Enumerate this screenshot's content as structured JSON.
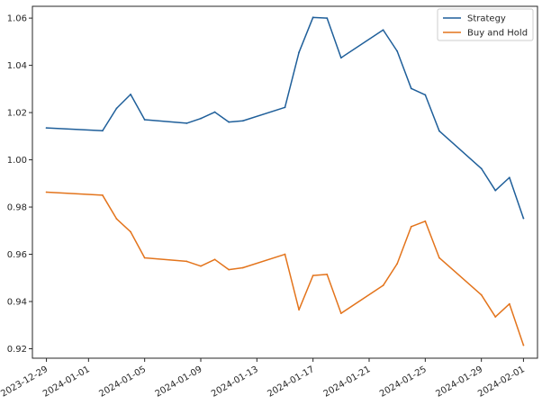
{
  "chart_data": {
    "type": "line",
    "title": "",
    "xlabel": "",
    "ylabel": "",
    "x_tick_labels": [
      "2023-12-29",
      "2024-01-01",
      "2024-01-05",
      "2024-01-09",
      "2024-01-13",
      "2024-01-17",
      "2024-01-21",
      "2024-01-25",
      "2024-01-29",
      "2024-02-01"
    ],
    "y_tick_labels": [
      "0.92",
      "0.94",
      "0.96",
      "0.98",
      "1.00",
      "1.02",
      "1.04",
      "1.06"
    ],
    "ylim": [
      0.916,
      1.065
    ],
    "xlim": [
      "2023-12-28",
      "2024-02-02"
    ],
    "grid": false,
    "legend_position": "top-right",
    "series": [
      {
        "name": "Strategy",
        "color": "#1f5f9a",
        "points": [
          [
            "2023-12-29",
            1.0135
          ],
          [
            "2024-01-02",
            1.0123
          ],
          [
            "2024-01-03",
            1.0218
          ],
          [
            "2024-01-04",
            1.0277
          ],
          [
            "2024-01-05",
            1.017
          ],
          [
            "2024-01-08",
            1.0155
          ],
          [
            "2024-01-09",
            1.0175
          ],
          [
            "2024-01-10",
            1.0202
          ],
          [
            "2024-01-11",
            1.016
          ],
          [
            "2024-01-12",
            1.0165
          ],
          [
            "2024-01-15",
            1.0222
          ],
          [
            "2024-01-16",
            1.0455
          ],
          [
            "2024-01-17",
            1.0603
          ],
          [
            "2024-01-18",
            1.06
          ],
          [
            "2024-01-19",
            1.0432
          ],
          [
            "2024-01-22",
            1.055
          ],
          [
            "2024-01-23",
            1.046
          ],
          [
            "2024-01-24",
            1.0302
          ],
          [
            "2024-01-25",
            1.0275
          ],
          [
            "2024-01-26",
            1.0122
          ],
          [
            "2024-01-29",
            0.9963
          ],
          [
            "2024-01-30",
            0.987
          ],
          [
            "2024-01-31",
            0.9925
          ],
          [
            "2024-02-01",
            0.9752
          ]
        ]
      },
      {
        "name": "Buy and Hold",
        "color": "#e3741c",
        "points": [
          [
            "2023-12-29",
            0.9863
          ],
          [
            "2024-01-02",
            0.985
          ],
          [
            "2024-01-03",
            0.975
          ],
          [
            "2024-01-04",
            0.9695
          ],
          [
            "2024-01-05",
            0.9585
          ],
          [
            "2024-01-08",
            0.957
          ],
          [
            "2024-01-09",
            0.955
          ],
          [
            "2024-01-10",
            0.9578
          ],
          [
            "2024-01-11",
            0.9535
          ],
          [
            "2024-01-12",
            0.9543
          ],
          [
            "2024-01-15",
            0.96
          ],
          [
            "2024-01-16",
            0.9365
          ],
          [
            "2024-01-17",
            0.951
          ],
          [
            "2024-01-18",
            0.9515
          ],
          [
            "2024-01-19",
            0.935
          ],
          [
            "2024-01-22",
            0.9468
          ],
          [
            "2024-01-23",
            0.956
          ],
          [
            "2024-01-24",
            0.9717
          ],
          [
            "2024-01-25",
            0.974
          ],
          [
            "2024-01-26",
            0.9585
          ],
          [
            "2024-01-29",
            0.9428
          ],
          [
            "2024-01-30",
            0.9335
          ],
          [
            "2024-01-31",
            0.939
          ],
          [
            "2024-02-01",
            0.9215
          ]
        ]
      }
    ]
  }
}
